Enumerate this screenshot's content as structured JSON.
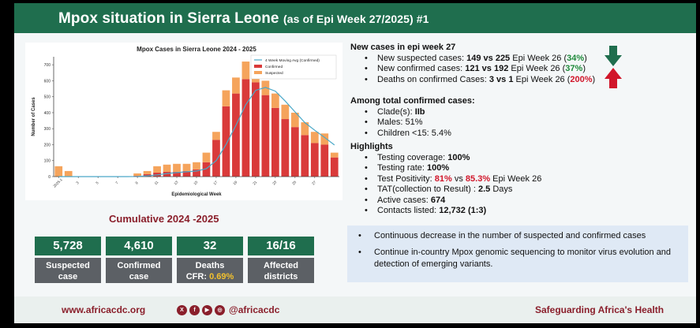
{
  "header": {
    "title": "Mpox situation in Sierra Leone",
    "subtitle": "(as of Epi Week 27/2025) #1"
  },
  "colors": {
    "green": "#1f6e4e",
    "maroon": "#8a1f2b",
    "confirmed": "#d93a3a",
    "suspected": "#f5a45c",
    "moving_avg": "#4aa8c8"
  },
  "chart_data": {
    "type": "bar",
    "title": "Mpox Cases in Sierra Leone 2024 - 2025",
    "xlabel": "Epidemiological Week",
    "ylabel": "Number of Cases",
    "ylim": [
      0,
      750
    ],
    "yticks": [
      0,
      100,
      200,
      300,
      400,
      500,
      600,
      700
    ],
    "x_tick_labels": [
      "2025-1",
      "3",
      "5",
      "7",
      "9",
      "11",
      "13",
      "15",
      "17",
      "19",
      "21",
      "23",
      "25",
      "27"
    ],
    "legend": [
      "4 Week Moving Avg (Confirmed)",
      "Confirmed",
      "Suspected"
    ],
    "legend_position": "top-right",
    "stacked": true,
    "series": [
      {
        "name": "Confirmed",
        "values": [
          0,
          0,
          0,
          0,
          0,
          0,
          0,
          0,
          5,
          15,
          25,
          30,
          30,
          35,
          45,
          90,
          230,
          440,
          520,
          610,
          590,
          510,
          430,
          360,
          310,
          260,
          210,
          200,
          120
        ]
      },
      {
        "name": "Suspected",
        "values": [
          65,
          35,
          2,
          2,
          2,
          2,
          2,
          2,
          15,
          20,
          40,
          45,
          50,
          45,
          45,
          60,
          50,
          100,
          100,
          110,
          90,
          90,
          90,
          90,
          90,
          80,
          70,
          70,
          30
        ]
      },
      {
        "name": "4 Week Moving Avg (Confirmed)",
        "type": "line",
        "values": [
          0,
          0,
          0,
          0,
          0,
          0,
          0,
          0,
          1,
          5,
          11,
          19,
          25,
          30,
          35,
          50,
          100,
          201,
          320,
          450,
          540,
          558,
          535,
          473,
          405,
          338,
          290,
          245,
          198
        ]
      }
    ]
  },
  "cumulative": {
    "title": "Cumulative 2024 -2025",
    "stats": [
      {
        "value": "5,728",
        "label1": "Suspected",
        "label2": "case"
      },
      {
        "value": "4,610",
        "label1": "Confirmed",
        "label2": "case"
      },
      {
        "value": "32",
        "label1": "Deaths",
        "label2": "CFR: ",
        "highlight": "0.69%"
      },
      {
        "value": "16/16",
        "label1": "Affected",
        "label2": "districts"
      }
    ]
  },
  "new_cases": {
    "title": "New cases in epi week 27",
    "items": [
      {
        "prefix": "New suspected cases: ",
        "bold": "149 vs 225",
        "mid": "  Epi Week 26 (",
        "pct": "34%",
        "suffix": ")"
      },
      {
        "prefix": "New confirmed cases: ",
        "bold": "121 vs 192",
        "mid": " Epi Week 26 (",
        "pct": "37%",
        "suffix": ")"
      },
      {
        "prefix": "Deaths on confirmed Cases: ",
        "bold": "3 vs 1",
        "mid": "  Epi Week 26 (",
        "pct": "200%",
        "suffix": ")"
      }
    ]
  },
  "among": {
    "title": "Among total confirmed cases:",
    "items": [
      {
        "prefix": "Clade(s): ",
        "bold": "IIb"
      },
      {
        "prefix": "Males: 51%",
        "bold": ""
      },
      {
        "prefix": "Children <15: 5.4%",
        "bold": ""
      }
    ]
  },
  "highlights": {
    "title": "Highlights",
    "coverage": {
      "prefix": "Testing coverage: ",
      "bold": "100%"
    },
    "rate": {
      "prefix": "Testing rate: ",
      "bold": "100%"
    },
    "positivity": {
      "prefix": "Test Positivity: ",
      "a": "81%",
      "vs": " vs ",
      "b": "85.3%",
      "suffix": " Epi Week 26"
    },
    "tat": {
      "prefix": "TAT(collection to Result) : ",
      "bold": "2.5",
      "suffix": " Days"
    },
    "active": {
      "prefix": "Active cases: ",
      "bold": "674"
    },
    "contacts": {
      "prefix": "Contacts listed: ",
      "bold": "12,732 (1:3)"
    }
  },
  "bottom_box": {
    "items": [
      "Continuous decrease in the number of suspected and confirmed cases",
      "Continue in-country Mpox genomic sequencing to monitor virus evolution and detection of emerging variants."
    ]
  },
  "footer": {
    "website": "www.africacdc.org",
    "social_icons": [
      "x-icon",
      "facebook-icon",
      "youtube-icon",
      "instagram-icon"
    ],
    "social_glyphs": [
      "X",
      "f",
      "▶",
      "◎"
    ],
    "handle": "@africacdc",
    "tagline": "Safeguarding Africa's Health"
  }
}
